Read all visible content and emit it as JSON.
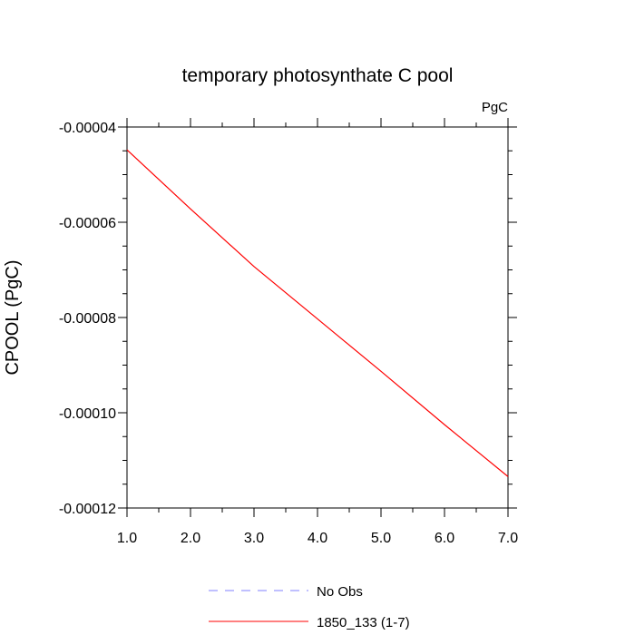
{
  "chart_data": {
    "type": "line",
    "title": "temporary photosynthate C pool",
    "units_label": "PgC",
    "ylabel": "CPOOL  (PgC)",
    "xlabel": "",
    "xlim": [
      1.0,
      7.0
    ],
    "ylim": [
      -0.00012,
      -4e-05
    ],
    "x_ticks": [
      1.0,
      2.0,
      3.0,
      4.0,
      5.0,
      6.0,
      7.0
    ],
    "x_tick_labels": [
      "1.0",
      "2.0",
      "3.0",
      "4.0",
      "5.0",
      "6.0",
      "7.0"
    ],
    "y_ticks": [
      -4e-05,
      -6e-05,
      -8e-05,
      -0.0001,
      -0.00012
    ],
    "y_tick_labels": [
      "-0.00004",
      "-0.00006",
      "-0.00008",
      "-0.00010",
      "-0.00012"
    ],
    "grid": false,
    "legend_position": "bottom-center",
    "series": [
      {
        "name": "No Obs",
        "color": "#8080ff",
        "dash": true,
        "x": [],
        "y": []
      },
      {
        "name": "1850_133 (1-7)",
        "color": "#ff0000",
        "dash": false,
        "x": [
          1,
          2,
          3,
          4,
          5,
          6,
          7
        ],
        "y": [
          -4.48e-05,
          -5.72e-05,
          -6.93e-05,
          -8.03e-05,
          -9.13e-05,
          -0.0001025,
          -0.0001134
        ]
      }
    ]
  }
}
